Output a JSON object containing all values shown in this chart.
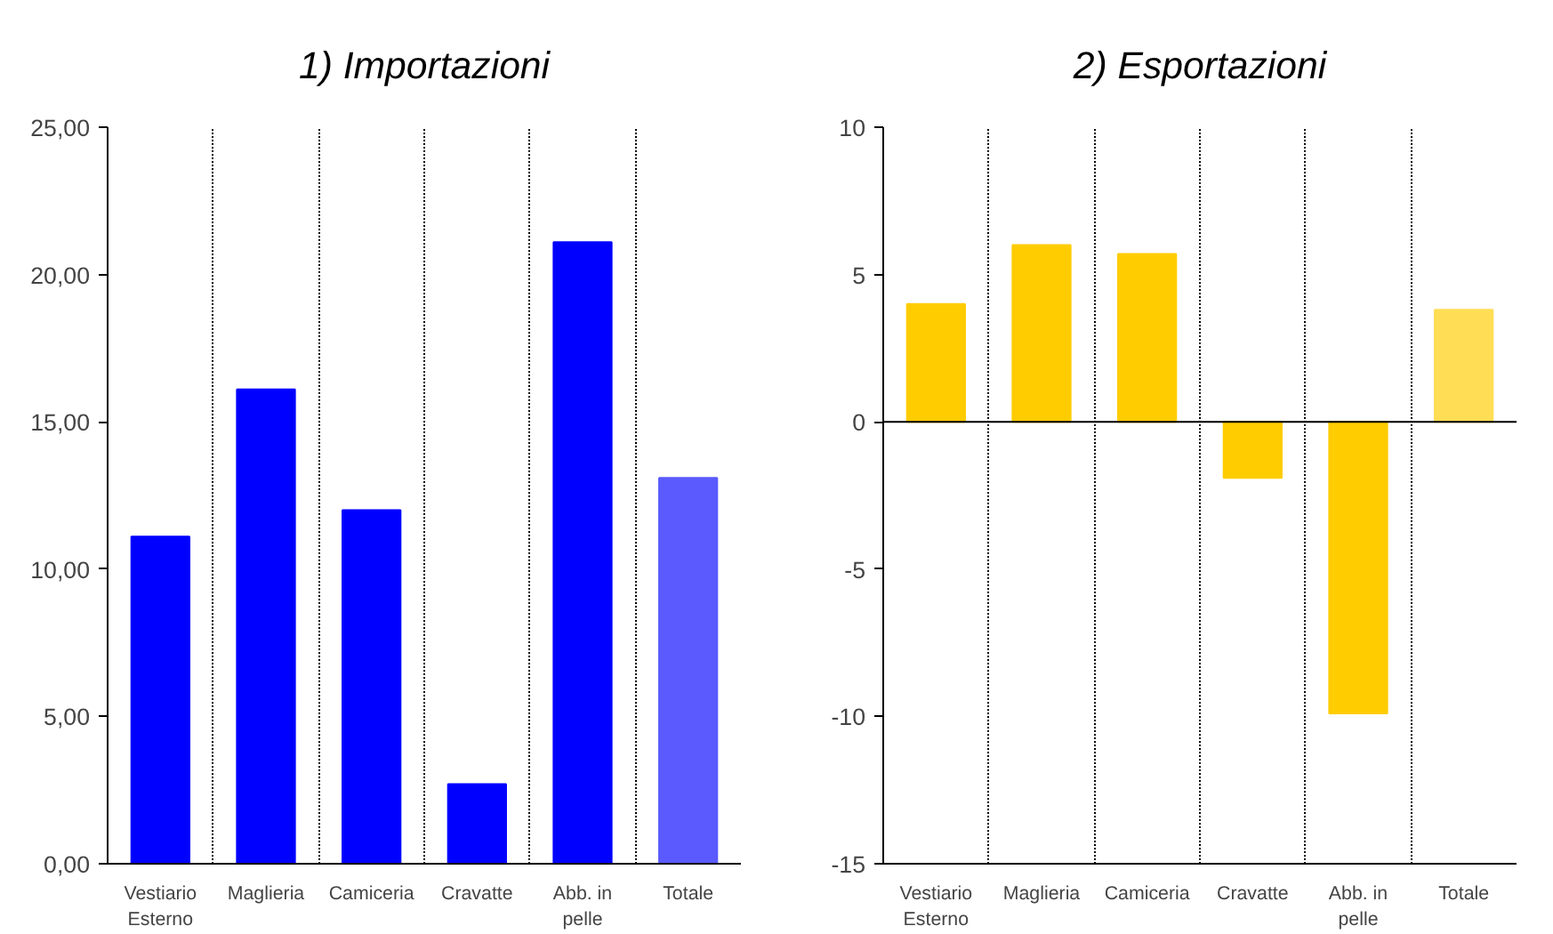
{
  "chart_data": [
    {
      "type": "bar",
      "title": "1) Importazioni",
      "categories": [
        "Vestiario Esterno",
        "Maglieria",
        "Camiceria",
        "Cravatte",
        "Abb. in pelle",
        "Totale"
      ],
      "values": [
        11.1,
        16.1,
        12.0,
        2.7,
        21.1,
        13.1
      ],
      "colors": [
        "#0000ff",
        "#0000ff",
        "#0000ff",
        "#0000ff",
        "#0000ff",
        "#5a5aff"
      ],
      "ylim": [
        0,
        25
      ],
      "yticks": [
        {
          "value": 0,
          "label": "0,00"
        },
        {
          "value": 5,
          "label": "5,00"
        },
        {
          "value": 10,
          "label": "10,00"
        },
        {
          "value": 15,
          "label": "15,00"
        },
        {
          "value": 20,
          "label": "20,00"
        },
        {
          "value": 25,
          "label": "25,00"
        }
      ],
      "grid": "x"
    },
    {
      "type": "bar",
      "title": "2) Esportazioni",
      "categories": [
        "Vestiario Esterno",
        "Maglieria",
        "Camiceria",
        "Cravatte",
        "Abb. in pelle",
        "Totale"
      ],
      "values": [
        4.0,
        6.0,
        5.7,
        -1.9,
        -9.9,
        3.8
      ],
      "colors": [
        "#ffcc00",
        "#ffcc00",
        "#ffcc00",
        "#ffcc00",
        "#ffcc00",
        "#ffdd55"
      ],
      "ylim": [
        -15,
        10
      ],
      "yticks": [
        -15,
        -10,
        -5,
        0,
        5,
        10
      ],
      "grid": "x"
    }
  ]
}
